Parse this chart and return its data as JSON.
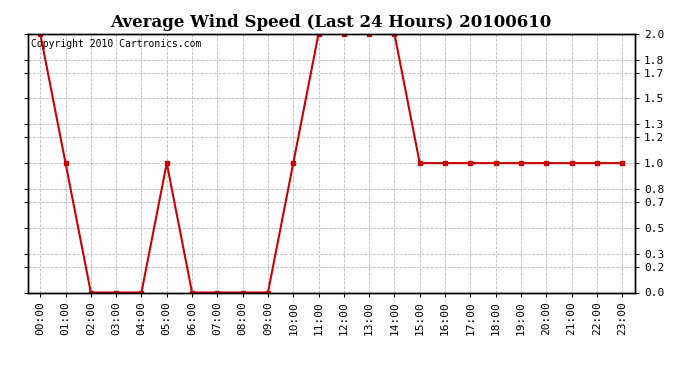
{
  "title": "Average Wind Speed (Last 24 Hours) 20100610",
  "copyright_text": "Copyright 2010 Cartronics.com",
  "x_labels": [
    "00:00",
    "01:00",
    "02:00",
    "03:00",
    "04:00",
    "05:00",
    "06:00",
    "07:00",
    "08:00",
    "09:00",
    "10:00",
    "11:00",
    "12:00",
    "13:00",
    "14:00",
    "15:00",
    "16:00",
    "17:00",
    "18:00",
    "19:00",
    "20:00",
    "21:00",
    "22:00",
    "23:00"
  ],
  "y_values": [
    2.0,
    1.0,
    0.0,
    0.0,
    0.0,
    1.0,
    0.0,
    0.0,
    0.0,
    0.0,
    1.0,
    2.0,
    2.0,
    2.0,
    2.0,
    1.0,
    1.0,
    1.0,
    1.0,
    1.0,
    1.0,
    1.0,
    1.0,
    1.0
  ],
  "line_color": "#cc0000",
  "marker": "s",
  "marker_size": 3,
  "line_width": 1.5,
  "ylim": [
    0.0,
    2.0
  ],
  "yticks": [
    0.0,
    0.2,
    0.3,
    0.5,
    0.7,
    0.8,
    1.0,
    1.2,
    1.3,
    1.5,
    1.7,
    1.8,
    2.0
  ],
  "bg_color": "#ffffff",
  "plot_bg_color": "#ffffff",
  "grid_color": "#bbbbbb",
  "title_fontsize": 12,
  "tick_fontsize": 8,
  "copyright_fontsize": 7
}
